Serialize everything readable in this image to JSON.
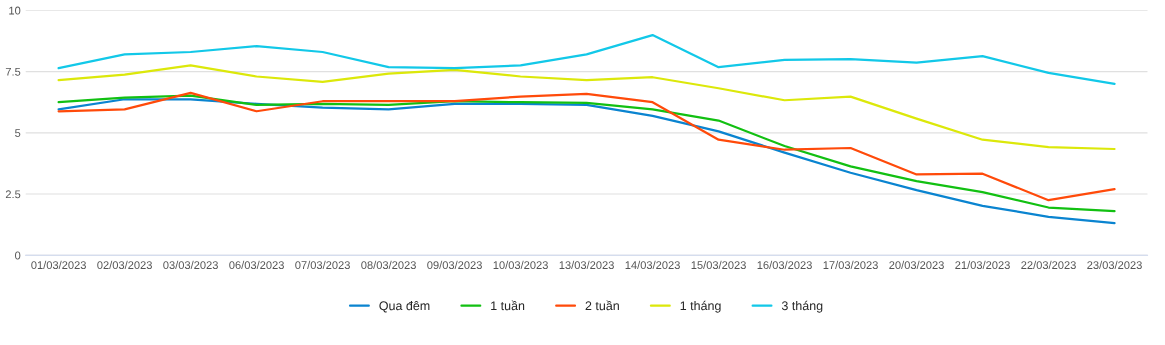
{
  "chart_data": {
    "type": "line",
    "categories": [
      "01/03/2023",
      "02/03/2023",
      "03/03/2023",
      "06/03/2023",
      "07/03/2023",
      "08/03/2023",
      "09/03/2023",
      "10/03/2023",
      "13/03/2023",
      "14/03/2023",
      "15/03/2023",
      "16/03/2023",
      "17/03/2023",
      "20/03/2023",
      "21/03/2023",
      "22/03/2023",
      "23/03/2023"
    ],
    "series": [
      {
        "name": "Qua đêm",
        "color": "#0a84d0",
        "values": [
          5.96,
          6.37,
          6.37,
          6.18,
          6.03,
          5.96,
          6.18,
          6.18,
          6.14,
          5.69,
          5.06,
          4.19,
          3.37,
          2.66,
          2.02,
          1.57,
          1.31
        ]
      },
      {
        "name": "1 tuần",
        "color": "#12c012",
        "values": [
          6.25,
          6.44,
          6.52,
          6.14,
          6.18,
          6.14,
          6.29,
          6.25,
          6.22,
          5.96,
          5.5,
          4.46,
          3.63,
          3.03,
          2.58,
          1.95,
          1.8
        ]
      },
      {
        "name": "2 tuần",
        "color": "#ff4a0a",
        "values": [
          5.88,
          5.96,
          6.63,
          5.88,
          6.29,
          6.29,
          6.29,
          6.48,
          6.59,
          6.25,
          4.72,
          4.31,
          4.38,
          3.3,
          3.33,
          2.25,
          2.7
        ]
      },
      {
        "name": "1 tháng",
        "color": "#dce80a",
        "values": [
          7.15,
          7.38,
          7.75,
          7.3,
          7.08,
          7.42,
          7.57,
          7.3,
          7.15,
          7.27,
          6.82,
          6.33,
          6.48,
          5.58,
          4.72,
          4.42,
          4.34
        ]
      },
      {
        "name": "3 tháng",
        "color": "#12c8e8",
        "values": [
          7.64,
          8.2,
          8.3,
          8.54,
          8.3,
          7.68,
          7.64,
          7.75,
          8.2,
          8.99,
          7.68,
          7.98,
          8.01,
          7.87,
          8.13,
          7.45,
          7.0
        ]
      }
    ],
    "ylim": [
      0,
      10
    ],
    "yticks": [
      0,
      2.5,
      5,
      7.5,
      10
    ],
    "grid": "y",
    "legend": "bottom",
    "marker": "none",
    "line_style": "solid"
  }
}
